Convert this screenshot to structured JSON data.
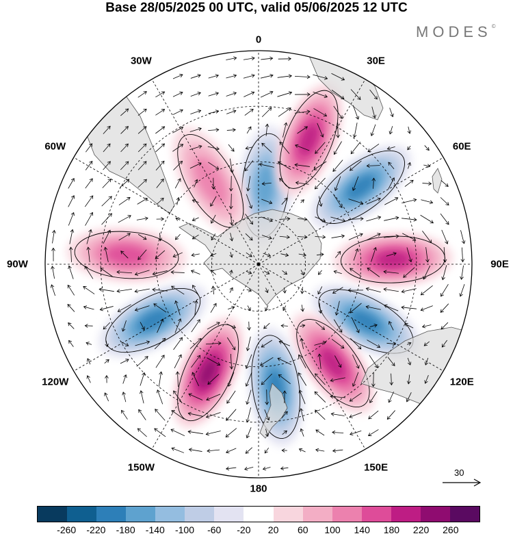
{
  "title": "Base 28/05/2025 00 UTC, valid 05/06/2025 12 UTC",
  "brand": {
    "name": "MODES",
    "mark": "©"
  },
  "map": {
    "projection": "south-polar-stereographic",
    "longitude_labels": [
      "0",
      "30E",
      "60E",
      "90E",
      "120E",
      "150E",
      "180",
      "150W",
      "120W",
      "90W",
      "60W",
      "30W"
    ],
    "graticule": "dashed"
  },
  "reference_vector": {
    "value": "30"
  },
  "colorbar": {
    "ticks": [
      "-260",
      "-220",
      "-180",
      "-140",
      "-100",
      "-60",
      "-20",
      "20",
      "60",
      "100",
      "140",
      "180",
      "220",
      "260"
    ],
    "colors": [
      "#083a5e",
      "#0f5f90",
      "#2d7fb8",
      "#5ea2cf",
      "#94bde0",
      "#bfcde6",
      "#e3e3f2",
      "#ffffff",
      "#f8d6de",
      "#f3aec5",
      "#ec81ae",
      "#de4c99",
      "#be1d84",
      "#8f0c70",
      "#5a0a61"
    ]
  },
  "anomalies": [
    {
      "sign": "negative",
      "lon": 5,
      "distance": 0.37,
      "magnitude": 140
    },
    {
      "sign": "positive",
      "lon": 22,
      "distance": 0.63,
      "magnitude": 180
    },
    {
      "sign": "negative",
      "lon": 53,
      "distance": 0.6,
      "magnitude": 180
    },
    {
      "sign": "positive",
      "lon": 88,
      "distance": 0.63,
      "magnitude": 180
    },
    {
      "sign": "negative",
      "lon": 118,
      "distance": 0.57,
      "magnitude": 180
    },
    {
      "sign": "positive",
      "lon": 143,
      "distance": 0.58,
      "magnitude": 180
    },
    {
      "sign": "negative",
      "lon": 172,
      "distance": 0.58,
      "magnitude": 180
    },
    {
      "sign": "positive",
      "lon": 205,
      "distance": 0.56,
      "magnitude": 220
    },
    {
      "sign": "negative",
      "lon": 242,
      "distance": 0.56,
      "magnitude": 180
    },
    {
      "sign": "positive",
      "lon": 274,
      "distance": 0.62,
      "magnitude": 140
    },
    {
      "sign": "positive",
      "lon": 330,
      "distance": 0.45,
      "magnitude": 100
    }
  ]
}
